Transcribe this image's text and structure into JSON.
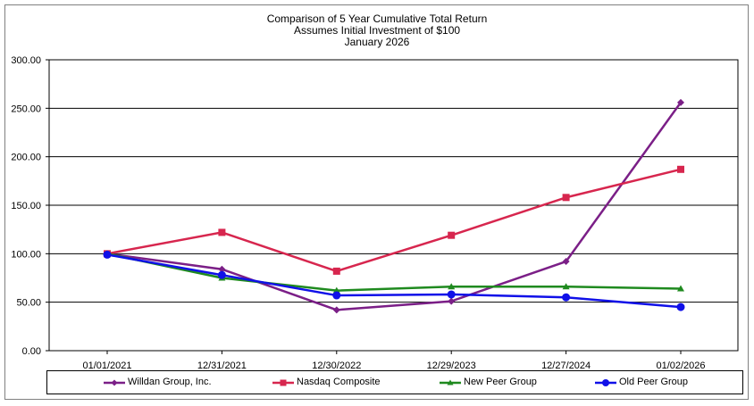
{
  "chart_data": {
    "type": "line",
    "title_lines": [
      "Comparison of 5 Year Cumulative Total Return",
      "Assumes Initial Investment of $100",
      "January 2026"
    ],
    "categories": [
      "01/01/2021",
      "12/31/2021",
      "12/30/2022",
      "12/29/2023",
      "12/27/2024",
      "01/02/2026"
    ],
    "ylim": [
      0,
      300
    ],
    "yticks": [
      "0.00",
      "50.00",
      "100.00",
      "150.00",
      "200.00",
      "250.00",
      "300.00"
    ],
    "grid": true,
    "legend_position": "bottom",
    "series": [
      {
        "name": "Willdan Group, Inc.",
        "color": "#7B1F87",
        "marker": "diamond",
        "values": [
          100,
          84,
          42,
          51,
          92,
          256
        ]
      },
      {
        "name": "Nasdaq Composite",
        "color": "#D7264E",
        "marker": "square",
        "values": [
          100,
          122,
          82,
          119,
          158,
          187
        ]
      },
      {
        "name": "New Peer Group",
        "color": "#1F8A1F",
        "marker": "triangle",
        "values": [
          100,
          75,
          62,
          66,
          66,
          64
        ]
      },
      {
        "name": "Old Peer Group",
        "color": "#1010E8",
        "marker": "circle",
        "values": [
          99,
          78,
          57,
          58,
          55,
          45
        ]
      }
    ]
  }
}
